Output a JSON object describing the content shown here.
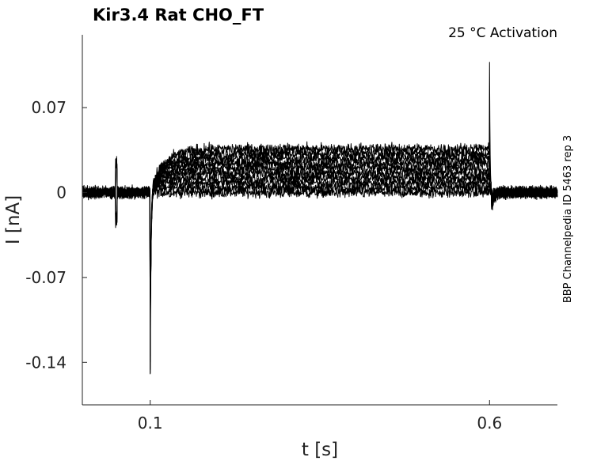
{
  "chart_data": {
    "type": "line",
    "title": "Kir3.4  Rat  CHO_FT",
    "subtitle": "25 °C  Activation",
    "side_note": "BBP Channelpedia ID 5463 rep 3",
    "xlabel": "t [s]",
    "ylabel": "I [nA]",
    "xlim": [
      0.0,
      0.7
    ],
    "ylim": [
      -0.175,
      0.13
    ],
    "xticks": [
      0.1,
      0.6
    ],
    "xtick_labels": [
      "0.1",
      "0.6"
    ],
    "yticks": [
      0.07,
      0,
      -0.07,
      -0.14
    ],
    "ytick_labels": [
      "0.07",
      "0",
      "-0.07",
      "-0.14"
    ],
    "grid": false,
    "line_color": "#000000",
    "axis_color": "#222222",
    "events": {
      "prepulse_time": 0.05,
      "step_on": 0.1,
      "step_off": 0.6,
      "on_transient_min": -0.152,
      "off_transient_max": 0.104
    },
    "series_plateau_levels": [
      0.0,
      0.004,
      0.008,
      0.012,
      0.016,
      0.02,
      0.024,
      0.028,
      0.032,
      0.036
    ]
  }
}
